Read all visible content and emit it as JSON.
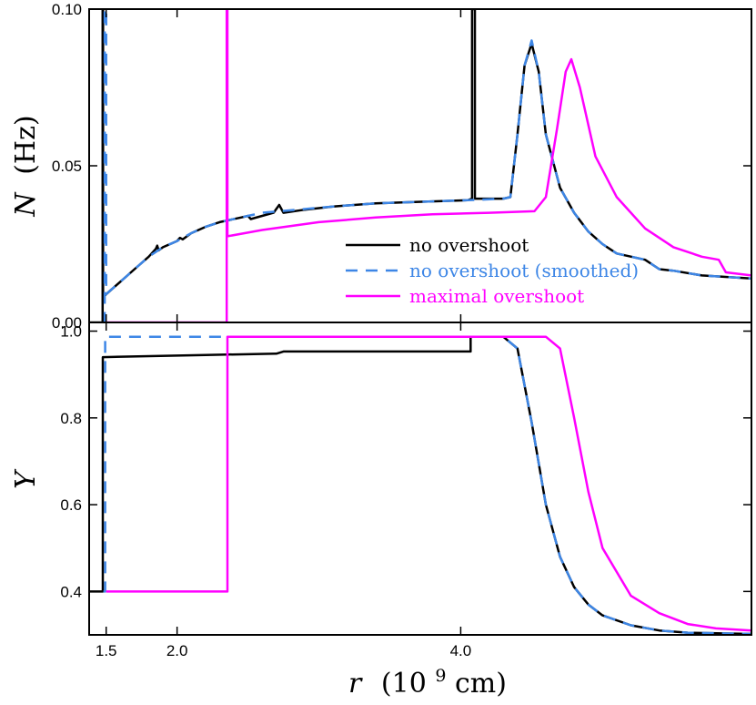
{
  "chart_data": [
    {
      "type": "line",
      "panel": "top",
      "ylabel_symbol": "N",
      "ylabel_unit": "(Hz)",
      "xlim": [
        1.38,
        6.05
      ],
      "ylim": [
        0.0,
        0.1
      ],
      "yticks": [
        0.0,
        0.05,
        0.1
      ],
      "ytick_labels": [
        "0.00",
        "0.05",
        "0.10"
      ],
      "legend_placement": "center",
      "series": [
        {
          "name": "no overshoot",
          "color": "#000000",
          "style": "solid",
          "points": [
            [
              1.38,
              0.0
            ],
            [
              1.475,
              0.0
            ],
            [
              1.475,
              0.1
            ],
            [
              1.478,
              0.1
            ],
            [
              1.478,
              0.008
            ],
            [
              1.5,
              0.009
            ],
            [
              1.6,
              0.013
            ],
            [
              1.7,
              0.017
            ],
            [
              1.8,
              0.021
            ],
            [
              1.85,
              0.0235
            ],
            [
              1.86,
              0.0245
            ],
            [
              1.87,
              0.023
            ],
            [
              1.9,
              0.024
            ],
            [
              2.0,
              0.026
            ],
            [
              2.02,
              0.027
            ],
            [
              2.04,
              0.0265
            ],
            [
              2.1,
              0.0285
            ],
            [
              2.2,
              0.0305
            ],
            [
              2.3,
              0.032
            ],
            [
              2.45,
              0.0335
            ],
            [
              2.5,
              0.034
            ],
            [
              2.52,
              0.033
            ],
            [
              2.6,
              0.034
            ],
            [
              2.68,
              0.035
            ],
            [
              2.72,
              0.0375
            ],
            [
              2.75,
              0.035
            ],
            [
              2.9,
              0.036
            ],
            [
              3.1,
              0.037
            ],
            [
              3.4,
              0.038
            ],
            [
              3.7,
              0.0385
            ],
            [
              4.05,
              0.039
            ],
            [
              4.08,
              0.0395
            ],
            [
              4.08,
              0.1
            ],
            [
              4.1,
              0.1
            ],
            [
              4.1,
              0.0395
            ],
            [
              4.3,
              0.0395
            ],
            [
              4.35,
              0.04
            ],
            [
              4.4,
              0.06
            ],
            [
              4.45,
              0.082
            ],
            [
              4.5,
              0.089
            ],
            [
              4.55,
              0.08
            ],
            [
              4.6,
              0.06
            ],
            [
              4.7,
              0.043
            ],
            [
              4.8,
              0.035
            ],
            [
              4.9,
              0.029
            ],
            [
              5.0,
              0.025
            ],
            [
              5.1,
              0.022
            ],
            [
              5.3,
              0.02
            ],
            [
              5.4,
              0.017
            ],
            [
              5.5,
              0.0165
            ],
            [
              5.7,
              0.015
            ],
            [
              6.05,
              0.014
            ]
          ]
        },
        {
          "name": "no overshoot (smoothed)",
          "color": "#3d86e6",
          "style": "dashed",
          "points": [
            [
              1.48,
              0.0
            ],
            [
              1.49,
              0.0
            ],
            [
              1.49,
              0.1
            ],
            [
              1.5,
              0.1
            ],
            [
              1.5,
              0.009
            ],
            [
              1.6,
              0.013
            ],
            [
              1.7,
              0.017
            ],
            [
              1.8,
              0.021
            ],
            [
              1.9,
              0.024
            ],
            [
              2.0,
              0.026
            ],
            [
              2.1,
              0.0285
            ],
            [
              2.2,
              0.0305
            ],
            [
              2.3,
              0.032
            ],
            [
              2.5,
              0.034
            ],
            [
              2.6,
              0.035
            ],
            [
              2.9,
              0.0362
            ],
            [
              3.1,
              0.037
            ],
            [
              3.4,
              0.038
            ],
            [
              3.7,
              0.0385
            ],
            [
              4.05,
              0.039
            ],
            [
              4.3,
              0.0395
            ],
            [
              4.35,
              0.04
            ],
            [
              4.4,
              0.06
            ],
            [
              4.45,
              0.082
            ],
            [
              4.5,
              0.09
            ],
            [
              4.55,
              0.08
            ],
            [
              4.6,
              0.06
            ],
            [
              4.7,
              0.043
            ],
            [
              4.8,
              0.035
            ],
            [
              4.9,
              0.029
            ],
            [
              5.0,
              0.025
            ],
            [
              5.1,
              0.022
            ],
            [
              5.3,
              0.02
            ],
            [
              5.4,
              0.017
            ],
            [
              5.5,
              0.0165
            ],
            [
              5.7,
              0.015
            ],
            [
              6.05,
              0.014
            ]
          ]
        },
        {
          "name": "maximal overshoot",
          "color": "#ff00ff",
          "style": "solid",
          "points": [
            [
              1.5,
              0.0
            ],
            [
              2.35,
              0.0
            ],
            [
              2.35,
              0.1
            ],
            [
              2.355,
              0.1
            ],
            [
              2.355,
              0.0275
            ],
            [
              2.6,
              0.0295
            ],
            [
              3.0,
              0.032
            ],
            [
              3.4,
              0.0335
            ],
            [
              3.8,
              0.0345
            ],
            [
              4.2,
              0.035
            ],
            [
              4.52,
              0.0355
            ],
            [
              4.6,
              0.04
            ],
            [
              4.68,
              0.062
            ],
            [
              4.74,
              0.08
            ],
            [
              4.78,
              0.084
            ],
            [
              4.84,
              0.075
            ],
            [
              4.95,
              0.053
            ],
            [
              5.1,
              0.04
            ],
            [
              5.3,
              0.03
            ],
            [
              5.5,
              0.024
            ],
            [
              5.7,
              0.021
            ],
            [
              5.82,
              0.02
            ],
            [
              5.87,
              0.016
            ],
            [
              6.05,
              0.015
            ]
          ]
        }
      ]
    },
    {
      "type": "line",
      "panel": "bottom",
      "ylabel_symbol": "Y",
      "xlabel_symbol": "r",
      "xlabel_unit": "(10",
      "xlabel_exp": "9",
      "xlabel_unit_end": "cm)",
      "xlim": [
        1.38,
        6.05
      ],
      "ylim": [
        0.3,
        1.02
      ],
      "yticks": [
        0.4,
        0.6,
        0.8,
        1.0
      ],
      "ytick_labels": [
        "0.4",
        "0.6",
        "0.8",
        "1.0"
      ],
      "xticks": [
        1.5,
        2.0,
        4.0
      ],
      "xtick_labels": [
        "1.5",
        "2.0",
        "4.0"
      ],
      "series": [
        {
          "name": "no overshoot",
          "color": "#000000",
          "style": "solid",
          "points": [
            [
              1.38,
              0.4
            ],
            [
              1.476,
              0.4
            ],
            [
              1.476,
              0.94
            ],
            [
              2.2,
              0.945
            ],
            [
              2.7,
              0.948
            ],
            [
              2.75,
              0.953
            ],
            [
              4.07,
              0.953
            ],
            [
              4.07,
              0.987
            ],
            [
              4.3,
              0.987
            ],
            [
              4.4,
              0.96
            ],
            [
              4.5,
              0.79
            ],
            [
              4.6,
              0.6
            ],
            [
              4.7,
              0.48
            ],
            [
              4.8,
              0.41
            ],
            [
              4.9,
              0.37
            ],
            [
              5.0,
              0.345
            ],
            [
              5.2,
              0.322
            ],
            [
              5.4,
              0.31
            ],
            [
              5.6,
              0.305
            ],
            [
              6.05,
              0.302
            ]
          ]
        },
        {
          "name": "no overshoot (smoothed)",
          "color": "#3d86e6",
          "style": "dashed",
          "points": [
            [
              1.48,
              0.4
            ],
            [
              1.493,
              0.4
            ],
            [
              1.493,
              0.987
            ],
            [
              4.3,
              0.987
            ],
            [
              4.4,
              0.96
            ],
            [
              4.5,
              0.79
            ],
            [
              4.6,
              0.6
            ],
            [
              4.7,
              0.48
            ],
            [
              4.8,
              0.41
            ],
            [
              4.9,
              0.37
            ],
            [
              5.0,
              0.345
            ],
            [
              5.2,
              0.322
            ],
            [
              5.4,
              0.31
            ],
            [
              5.6,
              0.305
            ],
            [
              6.05,
              0.302
            ]
          ]
        },
        {
          "name": "maximal overshoot",
          "color": "#ff00ff",
          "style": "solid",
          "points": [
            [
              1.5,
              0.4
            ],
            [
              2.355,
              0.4
            ],
            [
              2.355,
              0.987
            ],
            [
              4.6,
              0.987
            ],
            [
              4.7,
              0.96
            ],
            [
              4.8,
              0.8
            ],
            [
              4.9,
              0.63
            ],
            [
              5.0,
              0.5
            ],
            [
              5.2,
              0.39
            ],
            [
              5.4,
              0.35
            ],
            [
              5.6,
              0.325
            ],
            [
              5.8,
              0.315
            ],
            [
              6.05,
              0.31
            ]
          ]
        }
      ]
    }
  ]
}
